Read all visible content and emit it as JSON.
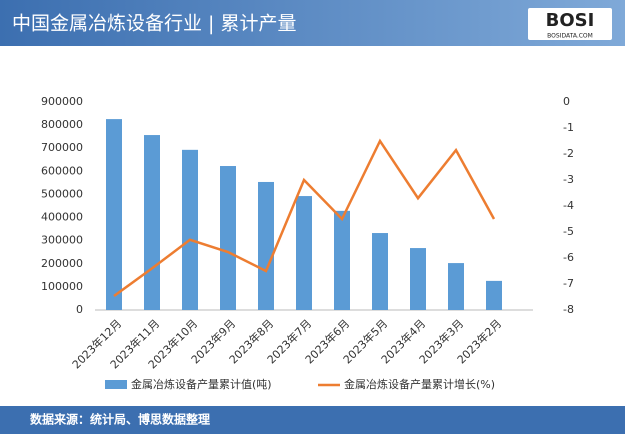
{
  "logo": {
    "text": "BOSI",
    "sub": "BOSIDATA.COM"
  },
  "chart_data": {
    "type": "bar-line",
    "title": "中国金属冶炼设备行业 | 累计产量",
    "source": "数据来源：统计局、博思数据整理",
    "categories": [
      "2023年12月",
      "2023年11月",
      "2023年10月",
      "2023年9月",
      "2023年8月",
      "2023年7月",
      "2023年6月",
      "2023年5月",
      "2023年4月",
      "2023年3月",
      "2023年2月"
    ],
    "series": [
      {
        "name": "金属冶炼设备产量累计值(吨)",
        "type": "bar",
        "color": "#5b9bd5",
        "values": [
          826000,
          757000,
          693000,
          623000,
          554000,
          493000,
          429000,
          333000,
          268000,
          203000,
          126000
        ]
      },
      {
        "name": "金属冶炼设备产量累计增长(%)",
        "type": "line",
        "axis": "y2",
        "color": "#ed7d31",
        "values": [
          -7.46,
          -6.4,
          -5.3,
          -5.77,
          -6.5,
          -3.0,
          -4.5,
          -1.5,
          -3.7,
          -1.85,
          -4.5
        ]
      }
    ],
    "ylim": [
      0,
      900000
    ],
    "yticks": [
      0,
      100000,
      200000,
      300000,
      400000,
      500000,
      600000,
      700000,
      800000,
      900000
    ],
    "y2lim": [
      -8,
      0
    ],
    "y2ticks": [
      0,
      -1,
      -2,
      -3,
      -4,
      -5,
      -6,
      -7,
      -8
    ],
    "grid": false
  }
}
